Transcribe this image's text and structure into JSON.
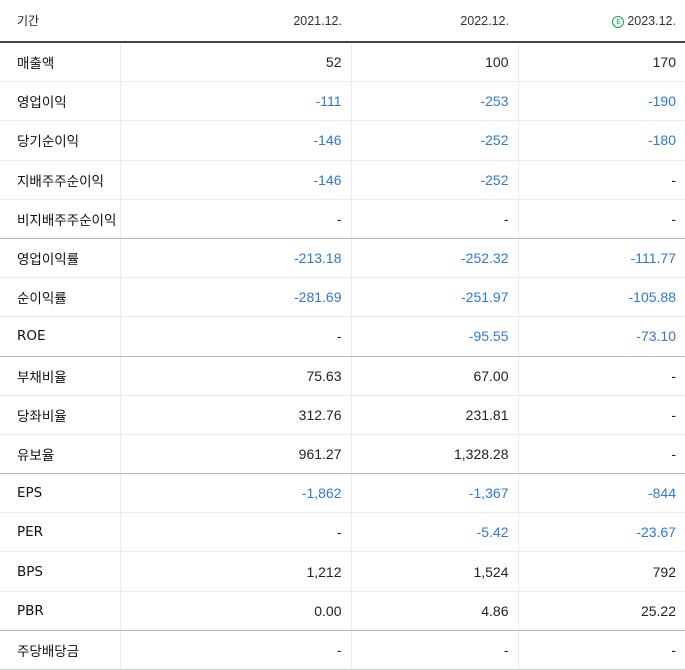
{
  "header": {
    "label": "기간",
    "periods": [
      {
        "label": "2021.12.",
        "estimate": false
      },
      {
        "label": "2022.12.",
        "estimate": false
      },
      {
        "label": "2023.12.",
        "estimate": true
      }
    ],
    "estimate_icon": "E"
  },
  "rows": [
    {
      "label": "매출액",
      "values": [
        "52",
        "100",
        "170"
      ]
    },
    {
      "label": "영업이익",
      "values": [
        "-111",
        "-253",
        "-190"
      ]
    },
    {
      "label": "당기순이익",
      "values": [
        "-146",
        "-252",
        "-180"
      ]
    },
    {
      "label": "지배주주순이익",
      "values": [
        "-146",
        "-252",
        "-"
      ]
    },
    {
      "label": "비지배주주순이익",
      "values": [
        "-",
        "-",
        "-"
      ]
    },
    {
      "label": "영업이익률",
      "values": [
        "-213.18",
        "-252.32",
        "-111.77"
      ]
    },
    {
      "label": "순이익률",
      "values": [
        "-281.69",
        "-251.97",
        "-105.88"
      ]
    },
    {
      "label": "ROE",
      "values": [
        "-",
        "-95.55",
        "-73.10"
      ]
    },
    {
      "label": "부채비율",
      "values": [
        "75.63",
        "67.00",
        "-"
      ]
    },
    {
      "label": "당좌비율",
      "values": [
        "312.76",
        "231.81",
        "-"
      ]
    },
    {
      "label": "유보율",
      "values": [
        "961.27",
        "1,328.28",
        "-"
      ]
    },
    {
      "label": "EPS",
      "values": [
        "-1,862",
        "-1,367",
        "-844"
      ]
    },
    {
      "label": "PER",
      "values": [
        "-",
        "-5.42",
        "-23.67"
      ]
    },
    {
      "label": "BPS",
      "values": [
        "1,212",
        "1,524",
        "792"
      ]
    },
    {
      "label": "PBR",
      "values": [
        "0.00",
        "4.86",
        "25.22"
      ]
    },
    {
      "label": "주당배당금",
      "values": [
        "-",
        "-",
        "-"
      ]
    }
  ],
  "colors": {
    "negative": "#2e78d6",
    "positive": "#222222",
    "estimate_badge": "#17a34a"
  }
}
